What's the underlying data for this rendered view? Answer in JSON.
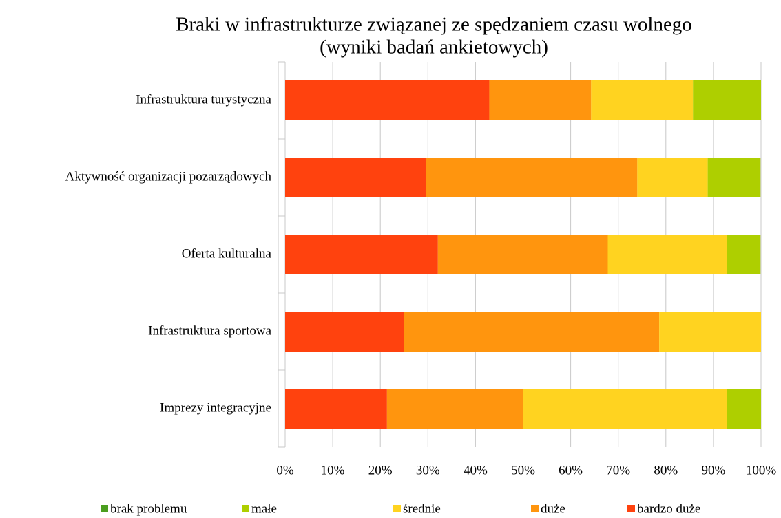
{
  "chart_data": {
    "type": "stacked-barh",
    "title": "Braki w infrastrukturze związanej ze spędzaniem czasu wolnego",
    "subtitle": "(wyniki badań ankietowych)",
    "categories": [
      "Infrastruktura turystyczna",
      "Aktywność organizacji pozarządowych",
      "Oferta kulturalna",
      "Infrastruktura sportowa",
      "Imprezy integracyjne"
    ],
    "series": [
      {
        "name": "bardzo duże",
        "color": "#ff420e",
        "values": [
          42.9,
          29.6,
          32.1,
          25,
          21.4
        ]
      },
      {
        "name": "duże",
        "color": "#ff950e",
        "values": [
          21.4,
          44.4,
          35.7,
          53.6,
          28.6
        ]
      },
      {
        "name": "średnie",
        "color": "#ffd320",
        "values": [
          21.4,
          14.8,
          25,
          21.4,
          42.9
        ]
      },
      {
        "name": "małe",
        "color": "#aecf00",
        "values": [
          14.3,
          11.1,
          7.1,
          0,
          7.1
        ]
      },
      {
        "name": "brak problemu",
        "color": "#4b9e1f",
        "values": [
          0,
          0,
          0,
          0,
          0
        ]
      }
    ],
    "legend_order": [
      "brak problemu",
      "małe",
      "średnie",
      "duże",
      "bardzo duże"
    ],
    "xlim": [
      0,
      100
    ],
    "xticks": [
      {
        "value": 0,
        "label": "0%"
      },
      {
        "value": 10,
        "label": "10%"
      },
      {
        "value": 20,
        "label": "20%"
      },
      {
        "value": 30,
        "label": "30%"
      },
      {
        "value": 40,
        "label": "40%"
      },
      {
        "value": 50,
        "label": "50%"
      },
      {
        "value": 60,
        "label": "60%"
      },
      {
        "value": 70,
        "label": "70%"
      },
      {
        "value": 80,
        "label": "80%"
      },
      {
        "value": 90,
        "label": "90%"
      },
      {
        "value": 100,
        "label": "100%"
      }
    ],
    "grid": true
  }
}
